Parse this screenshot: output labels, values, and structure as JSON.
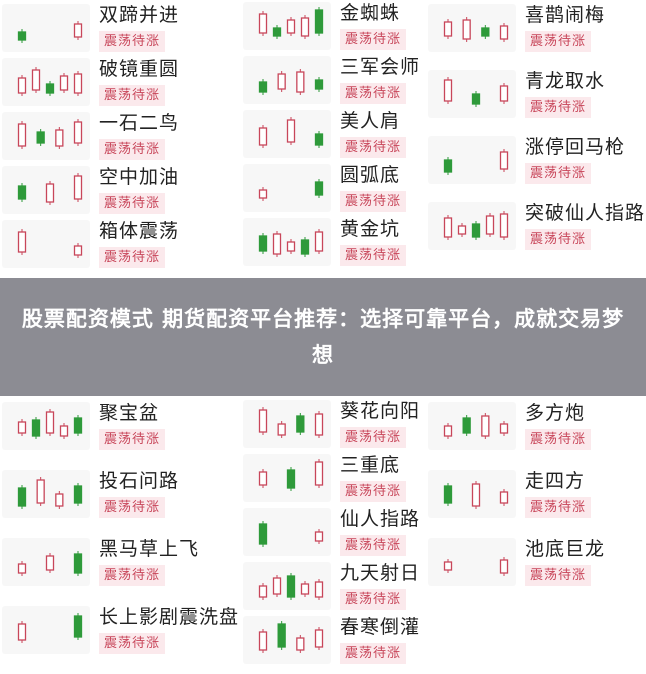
{
  "badge_label": "震荡待涨",
  "colors": {
    "up": "#c8465a",
    "down": "#2e9a3a",
    "badge_bg": "#fbe9ec",
    "overlay": "#5f5f69"
  },
  "columns": [
    {
      "items": [
        {
          "title": "双蹄并进"
        },
        {
          "title": "破镜重圆"
        },
        {
          "title": "一石二鸟"
        },
        {
          "title": "空中加油"
        },
        {
          "title": "箱体震荡"
        },
        {
          "title": "聚宝盆"
        },
        {
          "title": "投石问路"
        },
        {
          "title": "黑马草上飞"
        },
        {
          "title": "长上影剧震洗盘"
        }
      ]
    },
    {
      "items": [
        {
          "title": "金蜘蛛"
        },
        {
          "title": "三军会师"
        },
        {
          "title": "美人肩"
        },
        {
          "title": "圆弧底"
        },
        {
          "title": "黄金坑"
        },
        {
          "title": "葵花向阳"
        },
        {
          "title": "三重底"
        },
        {
          "title": "仙人指路"
        },
        {
          "title": "九天射日"
        },
        {
          "title": "春寒倒灌"
        }
      ]
    },
    {
      "items": [
        {
          "title": "喜鹊闹梅"
        },
        {
          "title": "青龙取水"
        },
        {
          "title": "涨停回马枪"
        },
        {
          "title": "突破仙人指路"
        },
        {
          "title": "多方炮"
        },
        {
          "title": "走四方"
        },
        {
          "title": "池底巨龙"
        }
      ]
    }
  ],
  "overlay": {
    "headline": "股票配资模式 期货配资平台推荐：选择可靠平台，成就交易梦想"
  }
}
